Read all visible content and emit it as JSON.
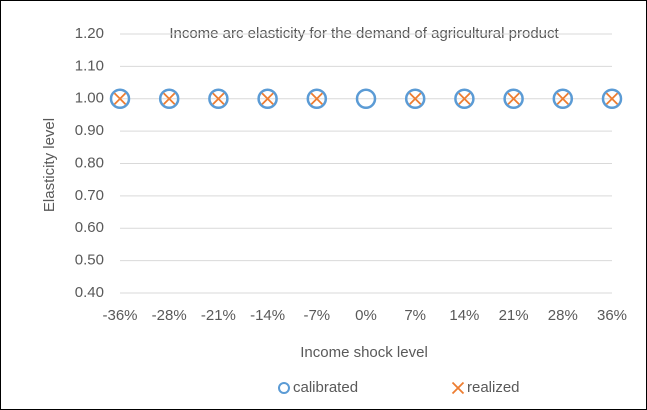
{
  "chart_data": {
    "type": "scatter",
    "title": "Income arc elasticity for the demand of agricultural product",
    "x_label": "Income shock level",
    "y_label": "Elasticity level",
    "categories": [
      "-36%",
      "-28%",
      "-21%",
      "-14%",
      "-7%",
      "0%",
      "7%",
      "14%",
      "21%",
      "28%",
      "36%"
    ],
    "series": [
      {
        "name": "calibrated",
        "color": "#5b9bd5",
        "marker": "circle",
        "values": [
          1,
          1,
          1,
          1,
          1,
          1,
          1,
          1,
          1,
          1,
          1
        ]
      },
      {
        "name": "realized",
        "color": "#ed7d31",
        "marker": "x",
        "values": [
          1,
          1,
          1,
          1,
          1,
          null,
          1,
          1,
          1,
          1,
          1
        ]
      }
    ],
    "ylim": [
      0.4,
      1.2
    ],
    "yticks": [
      {
        "value": 0.4,
        "label": "0.40"
      },
      {
        "value": 0.5,
        "label": "0.50"
      },
      {
        "value": 0.6,
        "label": "0.60"
      },
      {
        "value": 0.7,
        "label": "0.70"
      },
      {
        "value": 0.8,
        "label": "0.80"
      },
      {
        "value": 0.9,
        "label": "0.90"
      },
      {
        "value": 1.0,
        "label": "1.00"
      },
      {
        "value": 1.1,
        "label": "1.10"
      },
      {
        "value": 1.2,
        "label": "1.20"
      }
    ],
    "grid": true,
    "legend": "bottom"
  }
}
